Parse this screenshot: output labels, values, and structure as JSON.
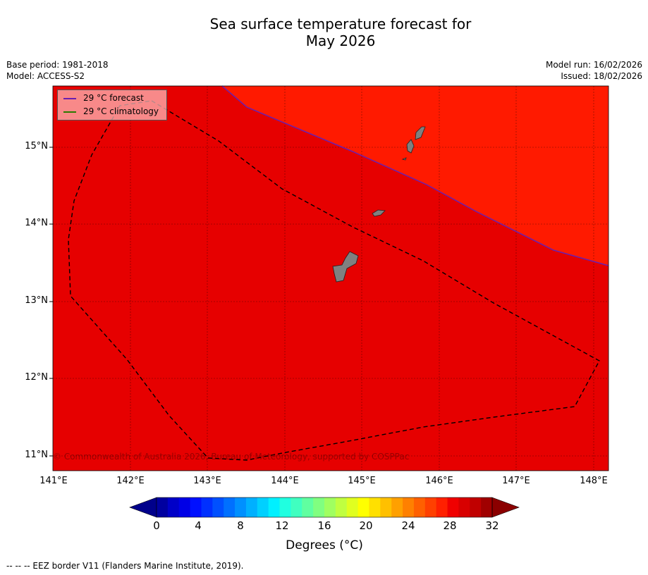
{
  "title_line1": "Sea surface temperature forecast for",
  "title_line2": "May 2026",
  "base_period": "Base period: 1981-2018",
  "model": "Model: ACCESS-S2",
  "model_run": "Model run: 16/02/2026",
  "issued": "Issued: 18/02/2026",
  "legend": {
    "forecast": "29 °C  forecast",
    "climatology": "29 °C  climatology",
    "forecast_color": "#6a1fb0",
    "climatology_color": "#2a7a00"
  },
  "copyright": "© Commonwealth of Australia 2026, Bureau of Meteorology, supported by COSPPac",
  "lat_labels": [
    "15°N",
    "14°N",
    "13°N",
    "12°N",
    "11°N"
  ],
  "lon_labels": [
    "141°E",
    "142°E",
    "143°E",
    "144°E",
    "145°E",
    "146°E",
    "147°E",
    "148°E"
  ],
  "colorbar": {
    "ticks": [
      "0",
      "4",
      "8",
      "12",
      "16",
      "20",
      "24",
      "28",
      "32"
    ],
    "label": "Degrees (°C)",
    "colors": [
      "#0000a0",
      "#0000c8",
      "#0000e6",
      "#0010ff",
      "#0030ff",
      "#0050ff",
      "#0070ff",
      "#0090ff",
      "#00b0ff",
      "#00d0ff",
      "#00f0ff",
      "#20ffe0",
      "#40ffc0",
      "#60ffa0",
      "#80ff80",
      "#a0ff60",
      "#c0ff40",
      "#e0ff20",
      "#ffff00",
      "#ffe000",
      "#ffc000",
      "#ffa000",
      "#ff8000",
      "#ff6000",
      "#ff4000",
      "#ff2000",
      "#f00000",
      "#d80000",
      "#c00000",
      "#a00000"
    ],
    "under_color": "#00008b",
    "over_color": "#8b0000"
  },
  "colors": {
    "region_warm": "#e60000",
    "region_hot": "#ff1a00",
    "land": "#808080"
  },
  "footnote": "--  --  -- EEZ border V11 (Flanders Marine Institute, 2019)."
}
